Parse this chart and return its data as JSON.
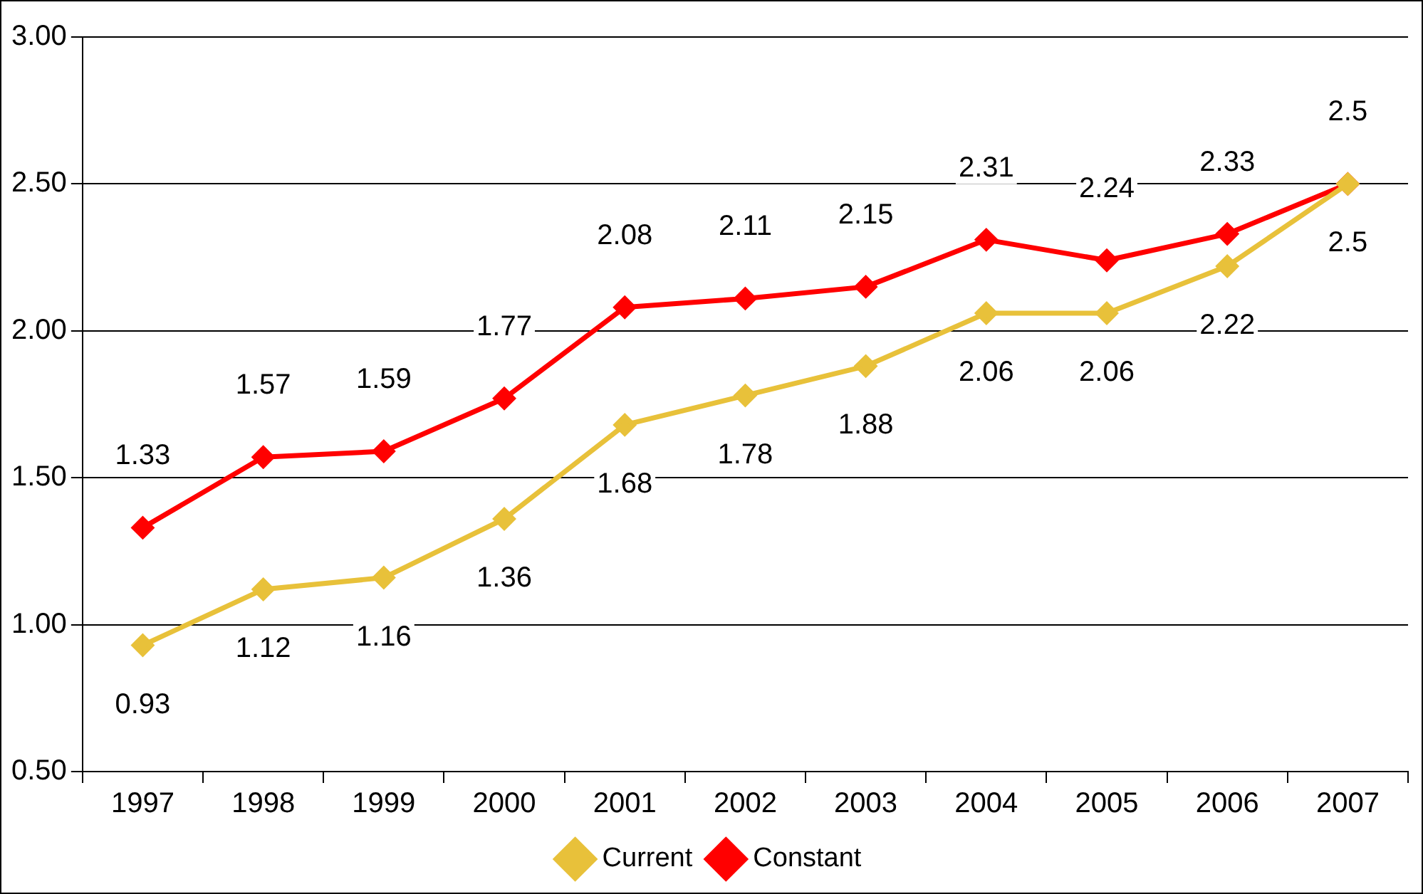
{
  "chart_data": {
    "type": "line",
    "categories": [
      "1997",
      "1998",
      "1999",
      "2000",
      "2001",
      "2002",
      "2003",
      "2004",
      "2005",
      "2006",
      "2007"
    ],
    "series": [
      {
        "name": "Current",
        "color": "#e8c13a",
        "values": [
          0.93,
          1.12,
          1.16,
          1.36,
          1.68,
          1.78,
          1.88,
          2.06,
          2.06,
          2.22,
          2.5
        ]
      },
      {
        "name": "Constant",
        "color": "#ff0000",
        "values": [
          1.33,
          1.57,
          1.59,
          1.77,
          2.08,
          2.11,
          2.15,
          2.31,
          2.24,
          2.33,
          2.5
        ]
      }
    ],
    "ylim": [
      0.5,
      3.0
    ],
    "yticks": [
      {
        "value": 0.5,
        "label": "0.50"
      },
      {
        "value": 1.0,
        "label": "1.00"
      },
      {
        "value": 1.5,
        "label": "1.50"
      },
      {
        "value": 2.0,
        "label": "2.00"
      },
      {
        "value": 2.5,
        "label": "2.50"
      },
      {
        "value": 3.0,
        "label": "3.00"
      }
    ],
    "grid": "y",
    "legend": "bottom",
    "marker": "diamond",
    "line_style": "solid",
    "data_labels": true
  }
}
